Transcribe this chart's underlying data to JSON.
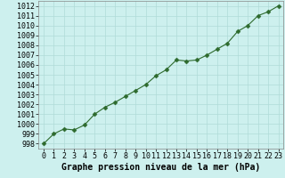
{
  "x": [
    0,
    1,
    2,
    3,
    4,
    5,
    6,
    7,
    8,
    9,
    10,
    11,
    12,
    13,
    14,
    15,
    16,
    17,
    18,
    19,
    20,
    21,
    22,
    23
  ],
  "y": [
    998.0,
    999.0,
    999.5,
    999.4,
    999.9,
    1001.0,
    1001.7,
    1002.2,
    1002.8,
    1003.4,
    1004.0,
    1004.9,
    1005.5,
    1006.5,
    1006.4,
    1006.5,
    1007.0,
    1007.6,
    1008.2,
    1009.4,
    1010.0,
    1011.0,
    1011.4,
    1012.0
  ],
  "line_color": "#2d6a2d",
  "marker": "D",
  "marker_size": 2.5,
  "bg_color": "#cdf0ee",
  "grid_color": "#b0dbd8",
  "xlabel": "Graphe pression niveau de la mer (hPa)",
  "xlabel_fontsize": 7,
  "tick_fontsize": 6,
  "ylim": [
    997.5,
    1012.5
  ],
  "xlim": [
    -0.5,
    23.5
  ],
  "yticks": [
    998,
    999,
    1000,
    1001,
    1002,
    1003,
    1004,
    1005,
    1006,
    1007,
    1008,
    1009,
    1010,
    1011,
    1012
  ],
  "xticks": [
    0,
    1,
    2,
    3,
    4,
    5,
    6,
    7,
    8,
    9,
    10,
    11,
    12,
    13,
    14,
    15,
    16,
    17,
    18,
    19,
    20,
    21,
    22,
    23
  ]
}
